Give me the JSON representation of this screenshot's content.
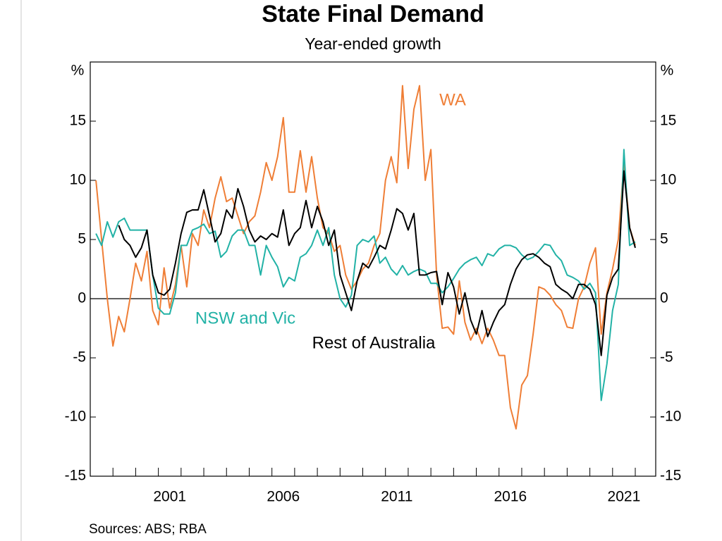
{
  "chart_data": {
    "type": "line",
    "title": "State Final Demand",
    "subtitle": "Year-ended growth",
    "y_unit": "%",
    "source": "Sources: ABS; RBA",
    "x": [
      1998.25,
      1998.5,
      1998.75,
      1999.0,
      1999.25,
      1999.5,
      1999.75,
      2000.0,
      2000.25,
      2000.5,
      2000.75,
      2001.0,
      2001.25,
      2001.5,
      2001.75,
      2002.0,
      2002.25,
      2002.5,
      2002.75,
      2003.0,
      2003.25,
      2003.5,
      2003.75,
      2004.0,
      2004.25,
      2004.5,
      2004.75,
      2005.0,
      2005.25,
      2005.5,
      2005.75,
      2006.0,
      2006.25,
      2006.5,
      2006.75,
      2007.0,
      2007.25,
      2007.5,
      2007.75,
      2008.0,
      2008.25,
      2008.5,
      2008.75,
      2009.0,
      2009.25,
      2009.5,
      2009.75,
      2010.0,
      2010.25,
      2010.5,
      2010.75,
      2011.0,
      2011.25,
      2011.5,
      2011.75,
      2012.0,
      2012.25,
      2012.5,
      2012.75,
      2013.0,
      2013.25,
      2013.5,
      2013.75,
      2014.0,
      2014.25,
      2014.5,
      2014.75,
      2015.0,
      2015.25,
      2015.5,
      2015.75,
      2016.0,
      2016.25,
      2016.5,
      2016.75,
      2017.0,
      2017.25,
      2017.5,
      2017.75,
      2018.0,
      2018.25,
      2018.5,
      2018.75,
      2019.0,
      2019.25,
      2019.5,
      2019.75,
      2020.0,
      2020.25,
      2020.5,
      2020.75,
      2021.0,
      2021.25,
      2021.5,
      2021.75,
      2022.0
    ],
    "series": [
      {
        "name": "WA",
        "color": "#ef7e36",
        "values": [
          10,
          5,
          0,
          -4,
          -1.5,
          -2.8,
          0,
          3,
          1.5,
          4,
          -1,
          -2.2,
          2.6,
          -0.8,
          1.2,
          4.5,
          1,
          5.5,
          4.5,
          7.5,
          6,
          8.5,
          10.3,
          8.2,
          8.5,
          7,
          5.5,
          6.5,
          7,
          9,
          11.5,
          10,
          12,
          15.3,
          9,
          9,
          12.5,
          9,
          12,
          8.5,
          6,
          5.5,
          4,
          4.5,
          2,
          0.8,
          1.5,
          2.5,
          3,
          4.5,
          5.5,
          10,
          12,
          9.8,
          18,
          11,
          16,
          18,
          10,
          12.6,
          2,
          -2.5,
          -2.4,
          -3,
          1.5,
          -2,
          -3.5,
          -2.5,
          -3.8,
          -2.5,
          -3.5,
          -4.8,
          -4.8,
          -9.2,
          -11,
          -7.3,
          -6.5,
          -3,
          1,
          0.8,
          0.3,
          -0.5,
          -1,
          -2.4,
          -2.5,
          0,
          1,
          3,
          4.3,
          -3,
          0.5,
          2.5,
          5,
          11.5,
          6,
          4.5
        ]
      },
      {
        "name": "NSW and Vic",
        "color": "#22b2a6",
        "values": [
          5.5,
          4.5,
          6.5,
          5.2,
          6.5,
          6.8,
          5.8,
          5.8,
          5.8,
          5.8,
          2,
          -0.8,
          -1.3,
          -1.3,
          0.5,
          4.5,
          4.5,
          5.8,
          6,
          6.3,
          5.5,
          5.7,
          3.5,
          4,
          5.3,
          5.8,
          5.8,
          4.5,
          4.5,
          2,
          4.5,
          3.5,
          2.7,
          1,
          1.8,
          1.5,
          3.5,
          3.8,
          4.5,
          5.8,
          4.5,
          6,
          2,
          0,
          -0.7,
          0.3,
          4.5,
          5,
          4.8,
          5.3,
          3,
          3.5,
          2.5,
          2,
          2.8,
          2,
          2.3,
          2.5,
          2.3,
          1.3,
          1.3,
          0.5,
          1,
          1.7,
          2.5,
          3,
          3.3,
          3.5,
          2.8,
          3.8,
          3.6,
          4.2,
          4.5,
          4.5,
          4.3,
          3.7,
          3.3,
          3.5,
          4,
          4.6,
          4.5,
          3.7,
          3.2,
          2,
          1.8,
          1.5,
          0.8,
          1.3,
          0.5,
          -8.6,
          -5.5,
          -1,
          1.2,
          12.6,
          4.5,
          4.8
        ]
      },
      {
        "name": "Rest of Australia",
        "color": "#000000",
        "values": [
          null,
          null,
          null,
          null,
          6.2,
          5,
          4.5,
          3.5,
          4.3,
          5.8,
          2,
          0.5,
          0.3,
          0.8,
          3,
          5.5,
          7.3,
          7.5,
          7.5,
          9.2,
          7,
          4.8,
          5.5,
          7.5,
          6.8,
          9.3,
          7.8,
          5.8,
          4.8,
          5.3,
          5,
          5.5,
          5.2,
          7.5,
          4.5,
          5.5,
          6,
          8.3,
          6,
          7.8,
          6.5,
          4.5,
          5.8,
          2,
          0.5,
          -1,
          1.5,
          3,
          2.6,
          3.5,
          4.5,
          4.2,
          5.8,
          7.6,
          7.2,
          5.8,
          7.2,
          2,
          2,
          2.2,
          2.3,
          -0.5,
          2.2,
          1,
          -1.3,
          0.5,
          -1.8,
          -3,
          -1,
          -3.2,
          -2,
          -1,
          -0.5,
          1.2,
          2.5,
          3.3,
          3.7,
          3.8,
          3.5,
          3,
          2.7,
          1.2,
          0.8,
          0.5,
          0,
          1.2,
          1.2,
          0.8,
          -0.5,
          -4.8,
          0.3,
          1.8,
          2.5,
          10.8,
          6,
          4.3
        ]
      }
    ],
    "xlim": [
      1998,
      2022.9
    ],
    "xticks": [
      {
        "value": 2001.5,
        "label": "2001"
      },
      {
        "value": 2006.5,
        "label": "2006"
      },
      {
        "value": 2011.5,
        "label": "2011"
      },
      {
        "value": 2016.5,
        "label": "2016"
      },
      {
        "value": 2021.5,
        "label": "2021"
      }
    ],
    "xminorticks": [
      1999,
      2000,
      2001,
      2002,
      2003,
      2004,
      2005,
      2006,
      2007,
      2008,
      2009,
      2010,
      2011,
      2012,
      2013,
      2014,
      2015,
      2016,
      2017,
      2018,
      2019,
      2020,
      2021,
      2022
    ],
    "ylim": [
      -15,
      20
    ],
    "yticks": [
      -15,
      -10,
      -5,
      0,
      5,
      10,
      15
    ],
    "zero_line": true
  }
}
